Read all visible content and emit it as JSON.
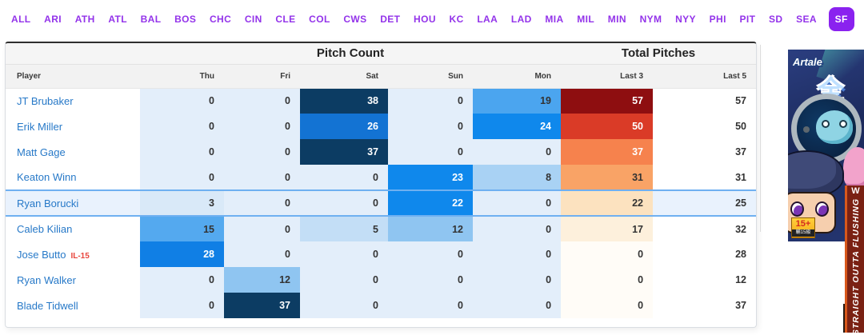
{
  "colors": {
    "accent_purple": "#9333ea",
    "selected_tab_bg": "#8a22ef",
    "player_link_blue": "#2779c8",
    "injury_tag_red": "#e8453c",
    "highlight_border_blue": "#6fb0f1",
    "heat_blue_max": "#0c3c63",
    "heat_red_max": "#8e0e10"
  },
  "team_tabs": {
    "items": [
      "ALL",
      "ARI",
      "ATH",
      "ATL",
      "BAL",
      "BOS",
      "CHC",
      "CIN",
      "CLE",
      "COL",
      "CWS",
      "DET",
      "HOU",
      "KC",
      "LAA",
      "LAD",
      "MIA",
      "MIL",
      "MIN",
      "NYM",
      "NYY",
      "PHI",
      "PIT",
      "SD",
      "SEA",
      "SF"
    ],
    "selected": "SF"
  },
  "table": {
    "groups": {
      "pitch_count": "Pitch Count",
      "total_pitches": "Total Pitches"
    },
    "columns": [
      "Player",
      "Thu",
      "Fri",
      "Sat",
      "Sun",
      "Mon",
      "Last 3",
      "Last 5"
    ],
    "rows": [
      {
        "name": "JT Brubaker",
        "tag": "",
        "highlight": false,
        "cells": [
          {
            "v": "0",
            "bg": "#e3eefa"
          },
          {
            "v": "0",
            "bg": "#e3eefa"
          },
          {
            "v": "38",
            "bg": "#0c3c63",
            "fg": "#fff"
          },
          {
            "v": "0",
            "bg": "#e3eefa"
          },
          {
            "v": "19",
            "bg": "#4ba5ef"
          },
          {
            "v": "57",
            "bg": "#8e0e10",
            "fg": "#fff"
          },
          {
            "v": "57",
            "bg": "#ffffff"
          }
        ]
      },
      {
        "name": "Erik Miller",
        "tag": "",
        "highlight": false,
        "cells": [
          {
            "v": "0",
            "bg": "#e3eefa"
          },
          {
            "v": "0",
            "bg": "#e3eefa"
          },
          {
            "v": "26",
            "bg": "#1373d3",
            "fg": "#fff"
          },
          {
            "v": "0",
            "bg": "#e3eefa"
          },
          {
            "v": "24",
            "bg": "#0f88ec",
            "fg": "#fff"
          },
          {
            "v": "50",
            "bg": "#da3b27",
            "fg": "#fff"
          },
          {
            "v": "50",
            "bg": "#ffffff"
          }
        ]
      },
      {
        "name": "Matt Gage",
        "tag": "",
        "highlight": false,
        "cells": [
          {
            "v": "0",
            "bg": "#e3eefa"
          },
          {
            "v": "0",
            "bg": "#e3eefa"
          },
          {
            "v": "37",
            "bg": "#0c3c63",
            "fg": "#fff"
          },
          {
            "v": "0",
            "bg": "#e3eefa"
          },
          {
            "v": "0",
            "bg": "#e3eefa"
          },
          {
            "v": "37",
            "bg": "#f6824d",
            "fg": "#fff"
          },
          {
            "v": "37",
            "bg": "#ffffff"
          }
        ]
      },
      {
        "name": "Keaton Winn",
        "tag": "",
        "highlight": false,
        "cells": [
          {
            "v": "0",
            "bg": "#e3eefa"
          },
          {
            "v": "0",
            "bg": "#e3eefa"
          },
          {
            "v": "0",
            "bg": "#e3eefa"
          },
          {
            "v": "23",
            "bg": "#0f88ec",
            "fg": "#fff"
          },
          {
            "v": "8",
            "bg": "#a9d2f4"
          },
          {
            "v": "31",
            "bg": "#f9a366"
          },
          {
            "v": "31",
            "bg": "#ffffff"
          }
        ]
      },
      {
        "name": "Ryan Borucki",
        "tag": "",
        "highlight": true,
        "cells": [
          {
            "v": "3",
            "bg": "#d9e9f8"
          },
          {
            "v": "0",
            "bg": "#e3eefa"
          },
          {
            "v": "0",
            "bg": "#e3eefa"
          },
          {
            "v": "22",
            "bg": "#0f88ec",
            "fg": "#fff"
          },
          {
            "v": "0",
            "bg": "#e3eefa"
          },
          {
            "v": "22",
            "bg": "#fce2bf"
          },
          {
            "v": "25",
            "bg": "#e9f2fd"
          }
        ]
      },
      {
        "name": "Caleb Kilian",
        "tag": "",
        "highlight": false,
        "cells": [
          {
            "v": "15",
            "bg": "#54a9ef"
          },
          {
            "v": "0",
            "bg": "#e3eefa"
          },
          {
            "v": "5",
            "bg": "#c3def6"
          },
          {
            "v": "12",
            "bg": "#8fc5f1"
          },
          {
            "v": "0",
            "bg": "#e3eefa"
          },
          {
            "v": "17",
            "bg": "#fdf0dc"
          },
          {
            "v": "32",
            "bg": "#ffffff"
          }
        ]
      },
      {
        "name": "Jose Butto",
        "tag": "IL-15",
        "highlight": false,
        "cells": [
          {
            "v": "28",
            "bg": "#107fe5",
            "fg": "#fff"
          },
          {
            "v": "0",
            "bg": "#e3eefa"
          },
          {
            "v": "0",
            "bg": "#e3eefa"
          },
          {
            "v": "0",
            "bg": "#e3eefa"
          },
          {
            "v": "0",
            "bg": "#e3eefa"
          },
          {
            "v": "0",
            "bg": "#fffcf7"
          },
          {
            "v": "28",
            "bg": "#ffffff"
          }
        ]
      },
      {
        "name": "Ryan Walker",
        "tag": "",
        "highlight": false,
        "cells": [
          {
            "v": "0",
            "bg": "#e3eefa"
          },
          {
            "v": "12",
            "bg": "#8fc5f1"
          },
          {
            "v": "0",
            "bg": "#e3eefa"
          },
          {
            "v": "0",
            "bg": "#e3eefa"
          },
          {
            "v": "0",
            "bg": "#e3eefa"
          },
          {
            "v": "0",
            "bg": "#fffcf7"
          },
          {
            "v": "12",
            "bg": "#ffffff"
          }
        ]
      },
      {
        "name": "Blade Tidwell",
        "tag": "",
        "highlight": false,
        "cells": [
          {
            "v": "0",
            "bg": "#e3eefa"
          },
          {
            "v": "37",
            "bg": "#0c3c63",
            "fg": "#fff"
          },
          {
            "v": "0",
            "bg": "#e3eefa"
          },
          {
            "v": "0",
            "bg": "#e3eefa"
          },
          {
            "v": "0",
            "bg": "#e3eefa"
          },
          {
            "v": "0",
            "bg": "#fffcf7"
          },
          {
            "v": "37",
            "bg": "#ffffff"
          }
        ]
      }
    ]
  },
  "ad": {
    "logo": "Artale",
    "headline": "全新",
    "age_badge": "15+",
    "age_badge_sub": "輔15級",
    "side_banner_top": "W",
    "side_banner_text": "STRAIGHT OUTTA FLUSHING"
  }
}
